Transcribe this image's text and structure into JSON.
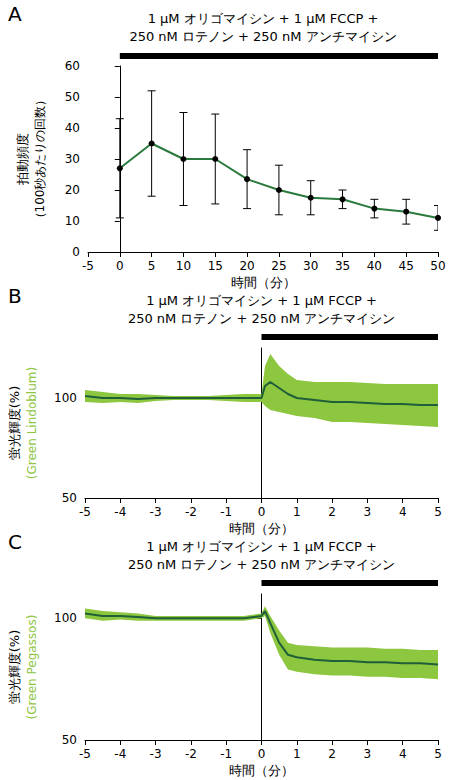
{
  "chart_data": [
    {
      "panel": "A",
      "type": "line",
      "treatment": [
        "1 μM オリゴマイシン + 1 μM FCCP +",
        "250 nM ロテノン + 250 nM アンチマイシン"
      ],
      "treatment_range": [
        0,
        50
      ],
      "xlabel": "時間（分）",
      "ylabel": "拍動頻度",
      "ylabel_sub": "（100秒あたりの回数）",
      "x": [
        0,
        5,
        10,
        15,
        20,
        25,
        30,
        35,
        40,
        45,
        50
      ],
      "values": [
        27,
        35,
        30,
        30,
        23.5,
        20,
        17.5,
        17,
        14,
        13,
        11
      ],
      "errors": [
        16,
        17,
        15,
        14.5,
        9.5,
        8,
        5.5,
        3,
        3,
        4,
        4
      ],
      "color": "#2b7a3d",
      "marker": "circle",
      "xlim": [
        -5,
        50
      ],
      "xticks": [
        -5,
        0,
        5,
        10,
        15,
        20,
        25,
        30,
        35,
        40,
        45,
        50
      ],
      "ylim": [
        0,
        60
      ],
      "yticks": [
        0,
        10,
        20,
        30,
        40,
        50,
        60
      ],
      "grid": false
    },
    {
      "panel": "B",
      "type": "line",
      "treatment": [
        "1 μM オリゴマイシン + 1 μM FCCP +",
        "250 nM ロテノン + 250 nM アンチマイシン"
      ],
      "treatment_range": [
        0,
        5
      ],
      "xlabel": "時間（分）",
      "ylabel": "蛍光輝度(%)",
      "ylabel_sub": "(Green Lindoblum)",
      "x": [
        -5,
        -4.5,
        -4,
        -3.5,
        -3,
        -2.5,
        -2,
        -1.5,
        -1,
        -0.5,
        0,
        0.1,
        0.25,
        0.5,
        0.75,
        1,
        1.5,
        2,
        2.5,
        3,
        3.5,
        4,
        4.5,
        5
      ],
      "values": [
        101,
        100,
        100,
        99.5,
        100,
        100,
        100,
        100,
        100,
        100,
        100,
        106,
        108,
        105,
        102,
        100,
        99,
        98,
        98,
        97.5,
        97,
        97,
        96.5,
        96.5
      ],
      "upper": [
        104,
        103,
        102,
        102,
        101.5,
        101,
        101,
        101,
        101.5,
        102,
        102,
        116,
        122,
        116,
        112,
        109,
        108,
        108,
        108,
        107.5,
        107,
        107,
        107,
        107
      ],
      "lower": [
        98,
        97.5,
        98,
        97.5,
        98.5,
        99,
        99,
        99,
        98.5,
        98,
        98,
        96,
        94,
        93,
        92,
        91,
        90,
        88,
        88,
        87.5,
        87,
        86.5,
        86,
        85.5
      ],
      "color": "#1f5f3a",
      "xlim": [
        -5,
        5
      ],
      "xticks": [
        -5,
        -4,
        -3,
        -2,
        -1,
        0,
        1,
        2,
        3,
        4,
        5
      ],
      "ylim": [
        50,
        125
      ],
      "yticks": [
        50,
        100
      ],
      "grid": false
    },
    {
      "panel": "C",
      "type": "line",
      "treatment": [
        "1 μM オリゴマイシン + 1 μM FCCP +",
        "250 nM ロテノン + 250 nM アンチマイシン"
      ],
      "treatment_range": [
        0,
        5
      ],
      "xlabel": "時間（分）",
      "ylabel": "蛍光輝度(%)",
      "ylabel_sub": "(Green Pegassos)",
      "x": [
        -5,
        -4.5,
        -4,
        -3.5,
        -3,
        -2.5,
        -2,
        -1.5,
        -1,
        -0.5,
        0,
        0.1,
        0.25,
        0.5,
        0.75,
        1,
        1.5,
        2,
        2.5,
        3,
        3.5,
        4,
        4.5,
        5
      ],
      "values": [
        102,
        101,
        101,
        100.5,
        100,
        100,
        100,
        100,
        100,
        100,
        101,
        103,
        98,
        90,
        85,
        84,
        83,
        82.5,
        82.5,
        82,
        82,
        81.5,
        81.5,
        81
      ],
      "upper": [
        104,
        103,
        102.5,
        102,
        101,
        101,
        101,
        101,
        101,
        101,
        102,
        105,
        101,
        95,
        90,
        89,
        88.5,
        88,
        88,
        88,
        87.5,
        87.5,
        87,
        87
      ],
      "lower": [
        100,
        99,
        99.5,
        99,
        99,
        99,
        99,
        99,
        99,
        99,
        100,
        101,
        94,
        85,
        79,
        78,
        77,
        76.5,
        76.5,
        76,
        76,
        75.5,
        75.5,
        75
      ],
      "color": "#1f5f3a",
      "xlim": [
        -5,
        5
      ],
      "xticks": [
        -5,
        -4,
        -3,
        -2,
        -1,
        0,
        1,
        2,
        3,
        4,
        5
      ],
      "ylim": [
        50,
        110
      ],
      "yticks": [
        50,
        100
      ],
      "grid": false
    }
  ]
}
